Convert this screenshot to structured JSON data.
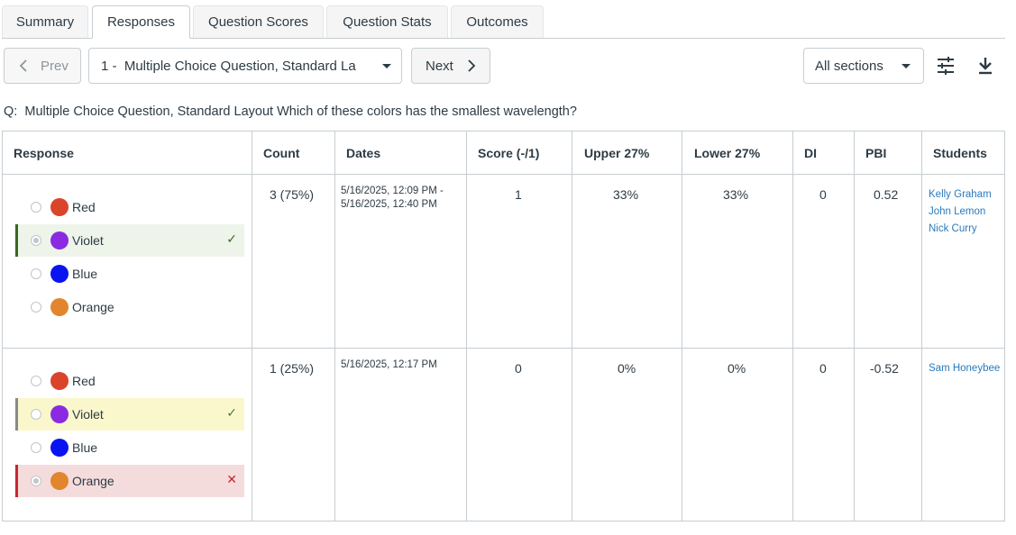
{
  "tabs": [
    "Summary",
    "Responses",
    "Question Scores",
    "Question Stats",
    "Outcomes"
  ],
  "toolbar": {
    "prev_label": "Prev",
    "question_select": "1 -  Multiple Choice Question, Standard La",
    "next_label": "Next",
    "sections_select": "All sections"
  },
  "question": {
    "prefix": "Q:",
    "text": "Multiple Choice Question, Standard Layout Which of these colors has the smallest wavelength?"
  },
  "table": {
    "headers": [
      "Response",
      "Count",
      "Dates",
      "Score (-/1)",
      "Upper 27%",
      "Lower 27%",
      "DI",
      "PBI",
      "Students"
    ],
    "rows": [
      {
        "options": [
          {
            "label": "Red",
            "color": "#d9442b",
            "state": "none"
          },
          {
            "label": "Violet",
            "color": "#8a2be2",
            "state": "correct-selected"
          },
          {
            "label": "Blue",
            "color": "#0a14f0",
            "state": "none"
          },
          {
            "label": "Orange",
            "color": "#e1862d",
            "state": "none"
          }
        ],
        "count": "3 (75%)",
        "date_line1": "5/16/2025, 12:09 PM -",
        "date_line2": "5/16/2025, 12:40 PM",
        "score": "1",
        "upper": "33%",
        "lower": "33%",
        "di": "0",
        "pbi": "0.52",
        "students": [
          "Kelly Graham",
          "John Lemon",
          "Nick Curry"
        ]
      },
      {
        "options": [
          {
            "label": "Red",
            "color": "#d9442b",
            "state": "none"
          },
          {
            "label": "Violet",
            "color": "#8a2be2",
            "state": "correct-missed"
          },
          {
            "label": "Blue",
            "color": "#0a14f0",
            "state": "none"
          },
          {
            "label": "Orange",
            "color": "#e1862d",
            "state": "wrong-selected"
          }
        ],
        "count": "1 (25%)",
        "date_line1": "5/16/2025, 12:17 PM",
        "date_line2": "",
        "score": "0",
        "upper": "0%",
        "lower": "0%",
        "di": "0",
        "pbi": "-0.52",
        "students": [
          "Sam Honeybee"
        ]
      }
    ]
  },
  "icons": {
    "check": "check-icon",
    "cross": "close-icon",
    "filter": "sliders-icon",
    "download": "download-icon"
  }
}
